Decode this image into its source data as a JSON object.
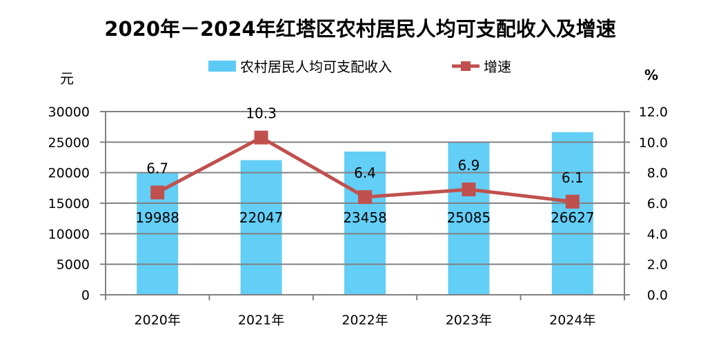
{
  "chart_data": {
    "type": "bar+line",
    "title": "2020年－2024年红塔区农村居民人均可支配收入及增速",
    "categories": [
      "2020年",
      "2021年",
      "2022年",
      "2023年",
      "2024年"
    ],
    "series": [
      {
        "name": "农村居民人均可支配收入",
        "type": "bar",
        "axis": "left",
        "values": [
          19988,
          22047,
          23458,
          25085,
          26627
        ],
        "color": "#5BCBF5"
      },
      {
        "name": "增速",
        "type": "line",
        "axis": "right",
        "values": [
          6.7,
          10.3,
          6.4,
          6.9,
          6.1
        ],
        "color": "#C0504D",
        "marker": "square"
      }
    ],
    "ylabel_left": "元",
    "ylabel_right": "%",
    "ylim_left": [
      0,
      30000
    ],
    "ylim_right": [
      0,
      12
    ],
    "yticks_left": [
      "0",
      "5000",
      "10000",
      "15000",
      "20000",
      "25000",
      "30000"
    ],
    "yticks_right": [
      "0.0",
      "2.0",
      "4.0",
      "6.0",
      "8.0",
      "10.0",
      "12.0"
    ],
    "grid": true,
    "legend_position": "top"
  }
}
